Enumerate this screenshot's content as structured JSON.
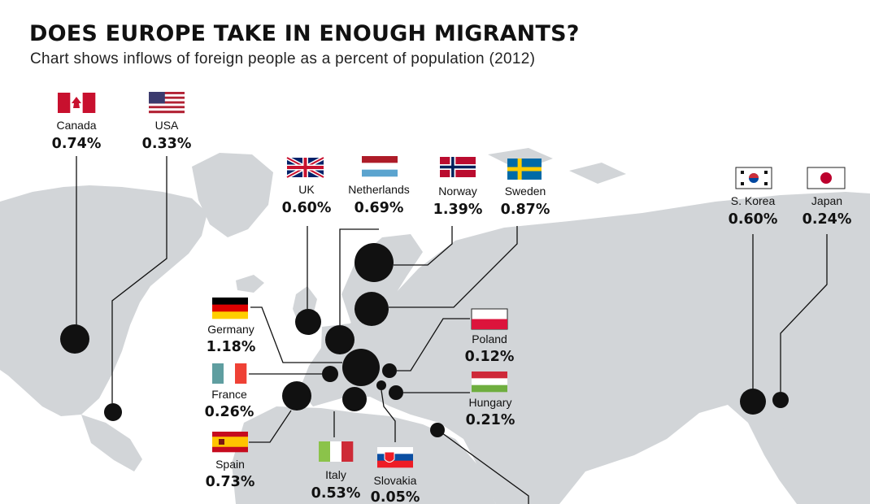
{
  "chart_data": {
    "type": "bubble map",
    "title": "DOES EUROPE TAKE IN ENOUGH MIGRANTS?",
    "subtitle": "Chart shows inflows of foreign people as a percent of population (2012)",
    "unit": "%",
    "categories": [
      "Canada",
      "USA",
      "UK",
      "Netherlands",
      "Norway",
      "Sweden",
      "S. Korea",
      "Japan",
      "Germany",
      "Poland",
      "France",
      "Hungary",
      "Spain",
      "Italy",
      "Slovakia"
    ],
    "values": [
      0.74,
      0.33,
      0.6,
      0.69,
      1.39,
      0.87,
      0.6,
      0.24,
      1.18,
      0.12,
      0.26,
      0.21,
      0.73,
      0.53,
      0.05
    ],
    "labels": [
      "0.74%",
      "0.33%",
      "0.60%",
      "0.69%",
      "1.39%",
      "0.87%",
      "0.60%",
      "0.24%",
      "1.18%",
      "0.12%",
      "0.26%",
      "0.21%",
      "0.73%",
      "0.53%",
      "0.05%"
    ],
    "colors": {
      "bubble": "#111111",
      "land": "#d2d5d8",
      "leader": "#111111"
    }
  }
}
